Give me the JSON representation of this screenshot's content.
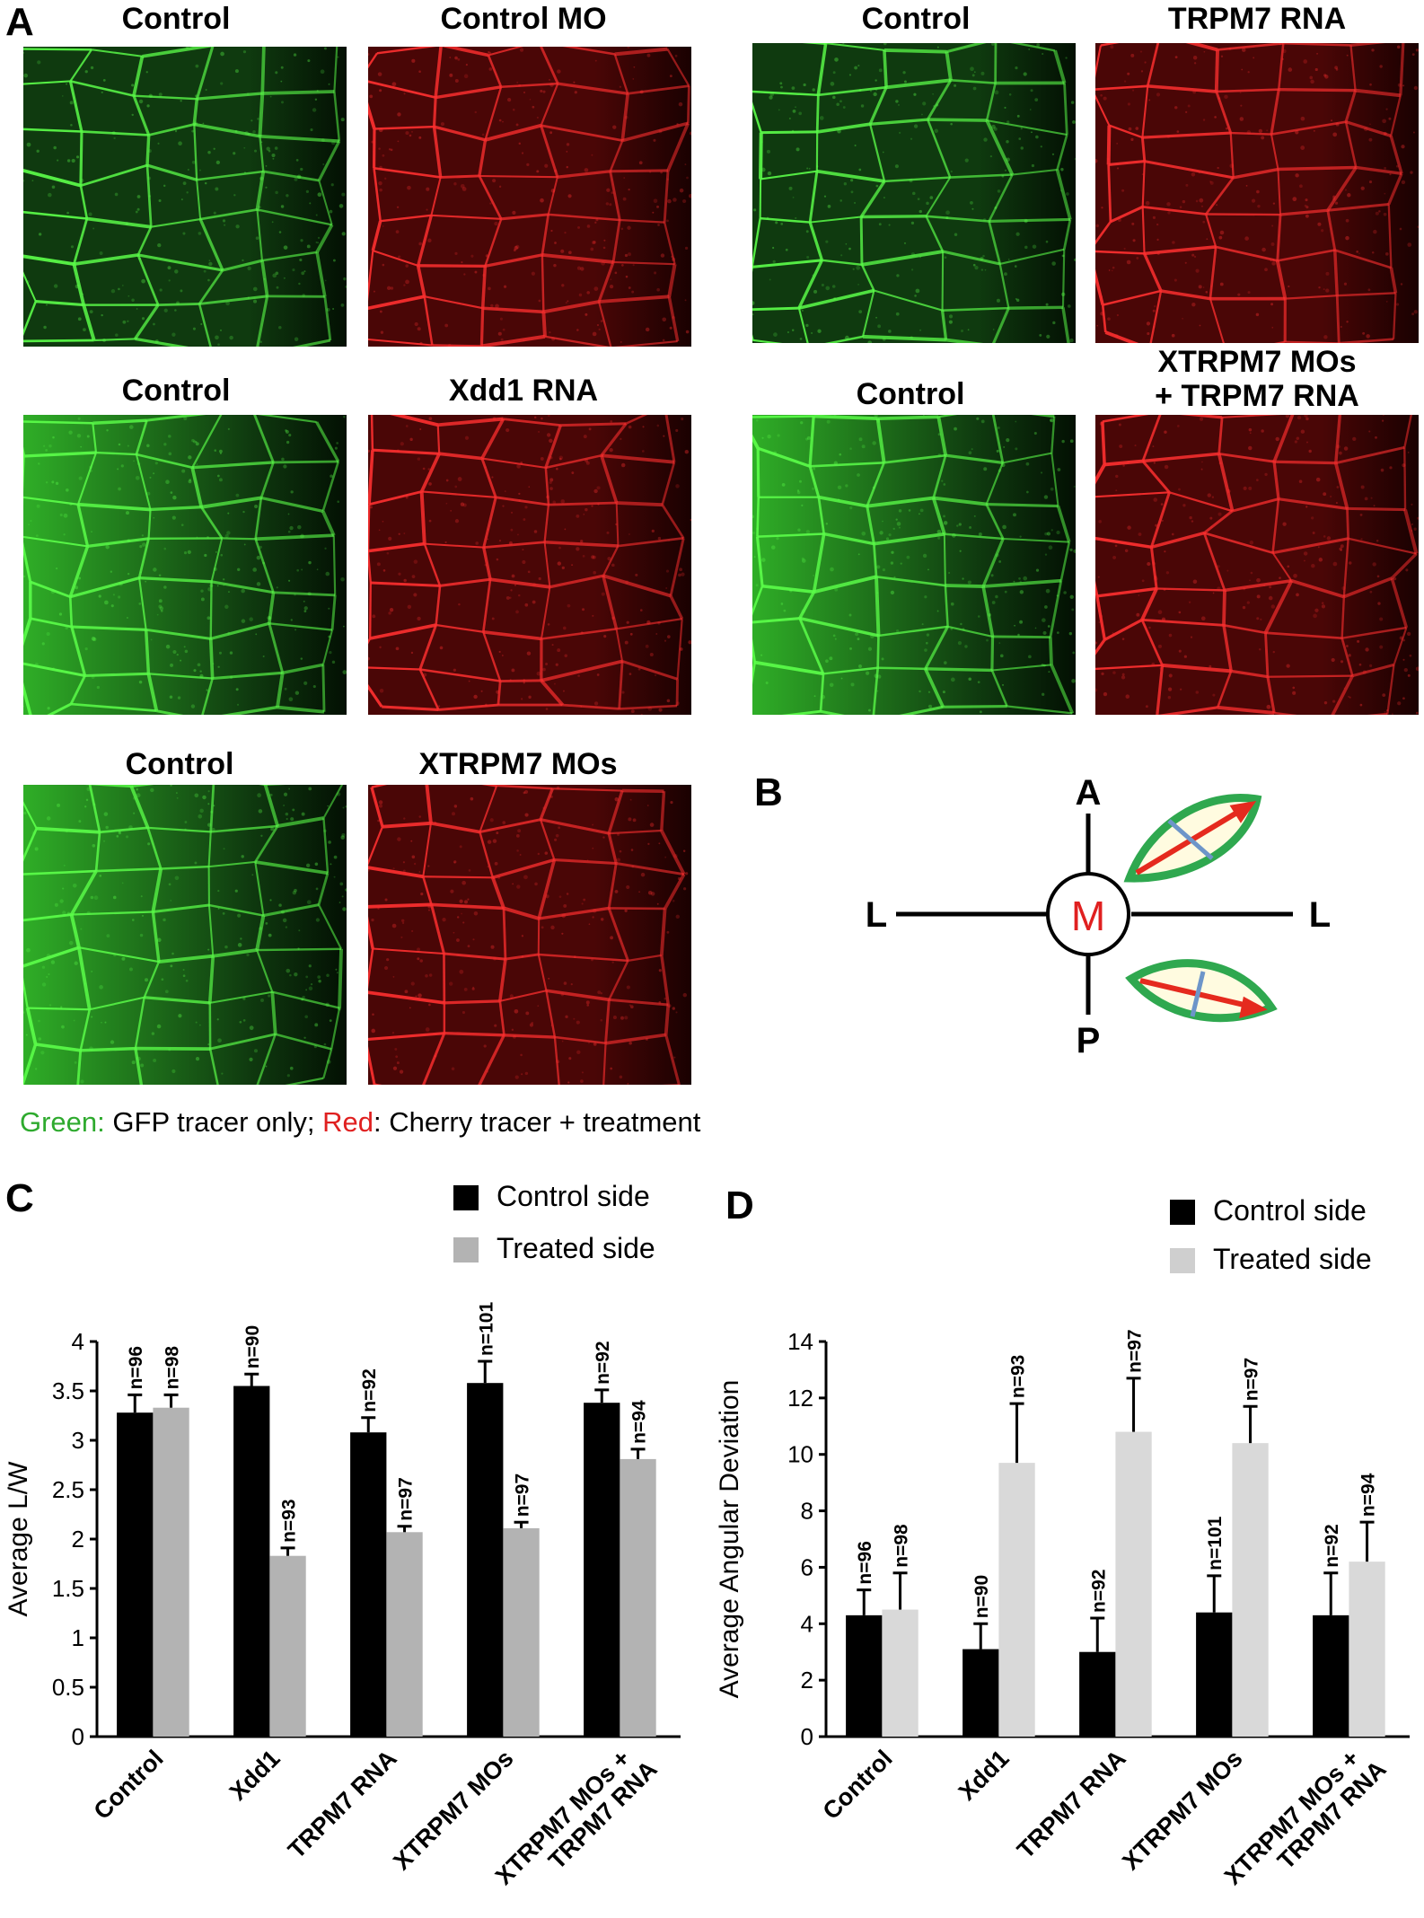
{
  "panels": {
    "a": "A",
    "b": "B",
    "c": "C",
    "d": "D"
  },
  "micrographs": [
    {
      "title": "Control",
      "color": "green"
    },
    {
      "title": "Control MO",
      "color": "red"
    },
    {
      "title": "Control",
      "color": "green"
    },
    {
      "title": "TRPM7 RNA",
      "color": "red"
    },
    {
      "title": "Control",
      "color": "green"
    },
    {
      "title": "Xdd1 RNA",
      "color": "red"
    },
    {
      "title": "Control",
      "color": "green"
    },
    {
      "title_line1": "XTRPM7 MOs",
      "title_line2": "+ TRPM7 RNA",
      "color": "red"
    },
    {
      "title": "Control",
      "color": "green"
    },
    {
      "title": "XTRPM7 MOs",
      "color": "red"
    }
  ],
  "legend_a": {
    "green_word": "Green:",
    "green_text": " GFP tracer only; ",
    "red_word": "Red",
    "red_text": ": Cherry tracer + treatment",
    "green_color": "#2eaa2e",
    "red_color": "#e02020"
  },
  "diagram_b": {
    "top": "A",
    "bottom": "P",
    "left": "L",
    "right": "L",
    "center": "M"
  },
  "chart_data": [
    {
      "type": "bar",
      "panel": "C",
      "ylabel": "Average L/W",
      "ylim": [
        0,
        4
      ],
      "yticks": [
        "0",
        "0.5",
        "1",
        "1.5",
        "2",
        "2.5",
        "3",
        "3.5",
        "4"
      ],
      "categories": [
        "Control",
        "Xdd1",
        "TRPM7 RNA",
        "XTRPM7 MOs",
        "XTRPM7 MOs + TRPM7 RNA"
      ],
      "category_lines": [
        [
          "Control"
        ],
        [
          "Xdd1"
        ],
        [
          "TRPM7 RNA"
        ],
        [
          "XTRPM7 MOs"
        ],
        [
          "XTRPM7 MOs +",
          "TRPM7 RNA"
        ]
      ],
      "series": [
        {
          "name": "Control side",
          "color": "#000000",
          "values": [
            3.28,
            3.55,
            3.08,
            3.58,
            3.38
          ],
          "errors": [
            0.18,
            0.12,
            0.15,
            0.22,
            0.13
          ],
          "n": [
            "n=96",
            "n=90",
            "n=92",
            "n=101",
            "n=92"
          ]
        },
        {
          "name": "Treated side",
          "color": "#b3b3b3",
          "values": [
            3.33,
            1.83,
            2.07,
            2.11,
            2.81
          ],
          "errors": [
            0.13,
            0.08,
            0.06,
            0.06,
            0.1
          ],
          "n": [
            "n=98",
            "n=93",
            "n=97",
            "n=97",
            "n=94"
          ]
        }
      ],
      "legend": [
        "Control side",
        "Treated side"
      ]
    },
    {
      "type": "bar",
      "panel": "D",
      "ylabel": "Average Angular Deviation",
      "ylim": [
        0,
        14
      ],
      "yticks": [
        "0",
        "2",
        "4",
        "6",
        "8",
        "10",
        "12",
        "14"
      ],
      "categories": [
        "Control",
        "Xdd1",
        "TRPM7 RNA",
        "XTRPM7 MOs",
        "XTRPM7 MOs + TRPM7 RNA"
      ],
      "category_lines": [
        [
          "Control"
        ],
        [
          "Xdd1"
        ],
        [
          "TRPM7 RNA"
        ],
        [
          "XTRPM7 MOs"
        ],
        [
          "XTRPM7 MOs +",
          "TRPM7 RNA"
        ]
      ],
      "series": [
        {
          "name": "Control side",
          "color": "#000000",
          "values": [
            4.3,
            3.1,
            3.0,
            4.4,
            4.3
          ],
          "errors": [
            0.9,
            0.9,
            1.2,
            1.3,
            1.5
          ],
          "n": [
            "n=96",
            "n=90",
            "n=92",
            "n=101",
            "n=92"
          ]
        },
        {
          "name": "Treated side",
          "color": "#d9d9d9",
          "values": [
            4.5,
            9.7,
            10.8,
            10.4,
            6.2
          ],
          "errors": [
            1.3,
            2.1,
            1.9,
            1.3,
            1.4
          ],
          "n": [
            "n=98",
            "n=93",
            "n=97",
            "n=97",
            "n=94"
          ]
        }
      ],
      "legend": [
        "Control side",
        "Treated side"
      ]
    }
  ]
}
